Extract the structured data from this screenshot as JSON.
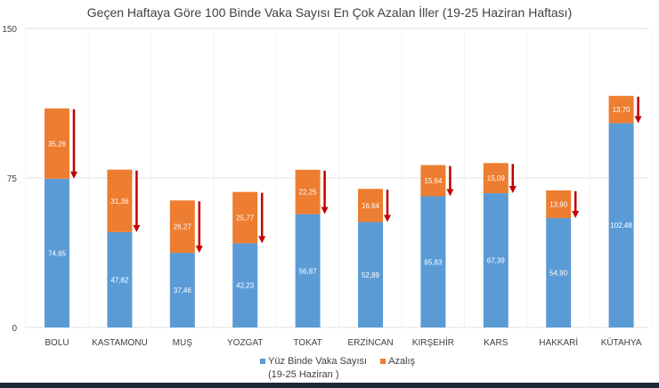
{
  "chart_data": {
    "type": "bar",
    "stacked": true,
    "title": "Geçen Haftaya Göre 100 Binde Vaka Sayısı En Çok Azalan İller (19-25 Haziran Haftası)",
    "categories": [
      "BOLU",
      "KASTAMONU",
      "MUŞ",
      "YOZGAT",
      "TOKAT",
      "ERZİNCAN",
      "KIRŞEHİR",
      "KARS",
      "HAKKARİ",
      "KÜTAHYA"
    ],
    "series": [
      {
        "name": "Yüz Binde Vaka Sayısı (19-25 Haziran )",
        "name_line1": "Yüz Binde Vaka Sayısı",
        "name_line2": "(19-25 Haziran )",
        "color": "#5b9bd5",
        "values": [
          74.65,
          47.82,
          37.46,
          42.23,
          56.87,
          52.89,
          65.83,
          67.39,
          54.9,
          102.48
        ],
        "labels": [
          "74,65",
          "47,82",
          "37,46",
          "42,23",
          "56,87",
          "52,89",
          "65,83",
          "67,39",
          "54,90",
          "102,48"
        ]
      },
      {
        "name": "Azalış",
        "color": "#ed7d31",
        "values": [
          35.26,
          31.36,
          26.27,
          25.77,
          22.25,
          16.64,
          15.64,
          15.09,
          13.9,
          13.7
        ],
        "labels": [
          "35,26",
          "31,36",
          "26,27",
          "25,77",
          "22,25",
          "16,64",
          "15,64",
          "15,09",
          "13,90",
          "13,70"
        ]
      }
    ],
    "yticks": [
      "0",
      "75",
      "150"
    ],
    "ylim": [
      0,
      150
    ],
    "grid": true,
    "legend": "bottom",
    "arrow_color": "#c00000",
    "xlabel": "",
    "ylabel": ""
  }
}
